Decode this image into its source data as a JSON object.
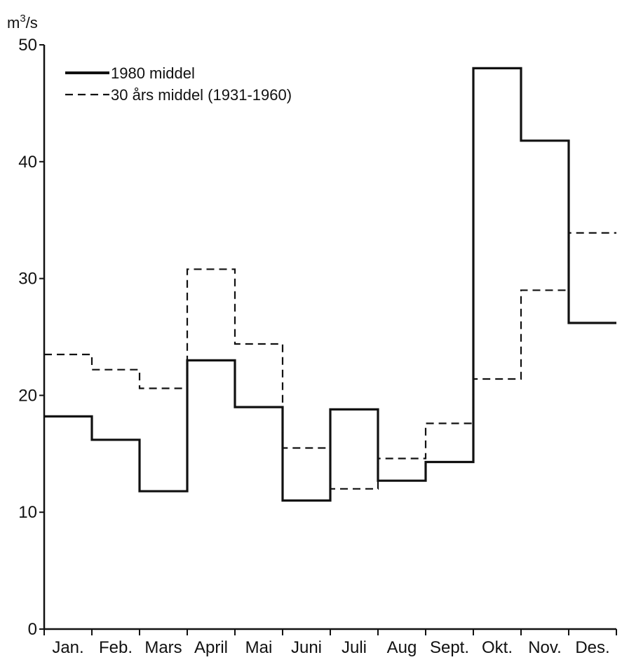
{
  "chart_data": {
    "type": "line",
    "step": true,
    "ylabel": "m",
    "ylabel_sup": "3",
    "ylabel_suffix": "/s",
    "ylim": [
      0,
      50
    ],
    "yticks": [
      "0",
      "10",
      "20",
      "30",
      "40",
      "50"
    ],
    "categories": [
      "Jan.",
      "Feb.",
      "Mars",
      "April",
      "Mai",
      "Juni",
      "Juli",
      "Aug",
      "Sept.",
      "Okt.",
      "Nov.",
      "Des."
    ],
    "legend_position": "top-left",
    "series": [
      {
        "name": "1980 middel",
        "style": "solid",
        "values": [
          18.2,
          16.2,
          11.8,
          23.0,
          19.0,
          11.0,
          18.8,
          12.7,
          14.3,
          48.0,
          41.8,
          26.2
        ]
      },
      {
        "name": "30 års middel (1931-1960)",
        "style": "dashed",
        "values": [
          23.5,
          22.2,
          20.6,
          30.8,
          24.4,
          15.5,
          12.0,
          14.6,
          17.6,
          21.4,
          29.0,
          33.9
        ]
      }
    ]
  }
}
